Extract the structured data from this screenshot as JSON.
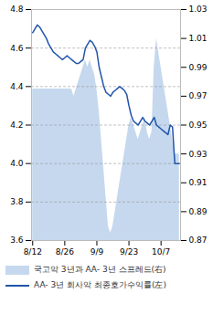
{
  "chart_data": {
    "type": "line",
    "categories": [
      "8/12",
      null,
      null,
      null,
      null,
      null,
      null,
      null,
      null,
      null,
      null,
      null,
      null,
      null,
      "8/26",
      null,
      null,
      null,
      null,
      null,
      null,
      null,
      null,
      null,
      null,
      null,
      null,
      null,
      "9/9",
      null,
      null,
      null,
      null,
      null,
      null,
      null,
      null,
      null,
      null,
      null,
      null,
      null,
      "9/23",
      null,
      null,
      null,
      null,
      null,
      null,
      null,
      null,
      null,
      null,
      null,
      null,
      null,
      "10/7",
      null,
      null,
      null,
      null,
      null,
      null,
      null,
      null
    ],
    "series": [
      {
        "name": "국고악 3년과 AA- 3년 스프레드(右)",
        "type": "area",
        "axis": "y2",
        "color": "#C5D8EE",
        "values": [
          0.975,
          0.975,
          0.975,
          0.975,
          0.975,
          0.975,
          0.975,
          0.975,
          0.975,
          0.975,
          0.975,
          0.975,
          0.975,
          0.975,
          0.975,
          0.975,
          0.975,
          0.975,
          0.97,
          0.975,
          0.98,
          0.985,
          0.99,
          0.995,
          0.99,
          0.995,
          0.99,
          0.985,
          0.975,
          0.96,
          0.94,
          0.92,
          0.9,
          0.88,
          0.875,
          0.88,
          0.89,
          0.9,
          0.91,
          0.92,
          0.93,
          0.94,
          0.95,
          0.955,
          0.95,
          0.945,
          0.94,
          0.945,
          0.95,
          0.955,
          0.945,
          0.94,
          0.945,
          0.99,
          1.01,
          1.0,
          0.99,
          0.98,
          0.97,
          0.96,
          0.95,
          0.94,
          0.93,
          0.93,
          0.93
        ]
      },
      {
        "name": "AA- 3년 회사악 최종호가수익률(左)",
        "type": "line",
        "color": "#2255AA",
        "values": [
          4.68,
          4.7,
          4.72,
          4.71,
          4.69,
          4.67,
          4.65,
          4.62,
          4.6,
          4.58,
          4.57,
          4.56,
          4.55,
          4.54,
          4.55,
          4.56,
          4.55,
          4.54,
          4.53,
          4.52,
          4.52,
          4.53,
          4.54,
          4.6,
          4.62,
          4.64,
          4.63,
          4.61,
          4.58,
          4.5,
          4.45,
          4.4,
          4.37,
          4.36,
          4.35,
          4.37,
          4.38,
          4.39,
          4.4,
          4.39,
          4.38,
          4.36,
          4.3,
          4.25,
          4.22,
          4.21,
          4.2,
          4.22,
          4.24,
          4.22,
          4.21,
          4.2,
          4.22,
          4.24,
          4.2,
          4.19,
          4.18,
          4.17,
          4.16,
          4.15,
          4.2,
          4.19,
          4.0,
          4.0,
          4.0
        ]
      }
    ],
    "ylim": [
      3.6,
      4.8
    ],
    "yticks": [
      3.6,
      3.8,
      {
        "value": 4.0,
        "label": "4.0"
      },
      4.2,
      4.4,
      4.6,
      4.8
    ],
    "y2lim": [
      0.87,
      1.03
    ],
    "y2ticks": [
      0.87,
      0.89,
      0.91,
      0.93,
      0.95,
      0.97,
      0.99,
      1.01,
      1.03
    ],
    "grid": true,
    "legend": "bottom"
  }
}
